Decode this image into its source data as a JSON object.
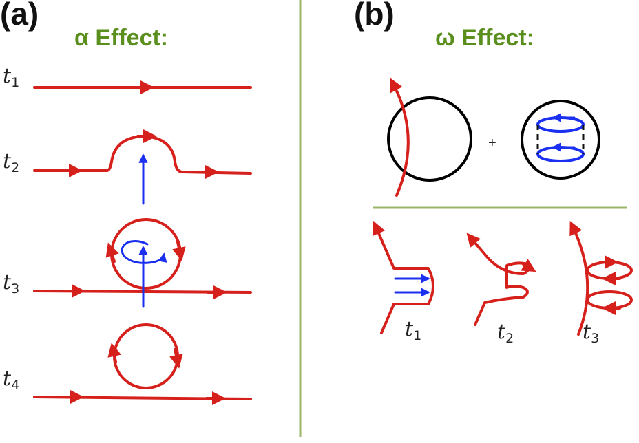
{
  "panel_a": {
    "label": "(a)",
    "title": "α Effect:",
    "time_labels": [
      {
        "base": "t",
        "sub": "1"
      },
      {
        "base": "t",
        "sub": "2"
      },
      {
        "base": "t",
        "sub": "3"
      },
      {
        "base": "t",
        "sub": "4"
      }
    ]
  },
  "panel_b": {
    "label": "(b)",
    "title": "ω Effect:",
    "plus_sign": "+",
    "time_labels": [
      {
        "base": "t",
        "sub": "1"
      },
      {
        "base": "t",
        "sub": "2"
      },
      {
        "base": "t",
        "sub": "3"
      }
    ]
  },
  "colors": {
    "field_line": "#d6201c",
    "flow": "#1a2ff0",
    "title": "#5a8f1e",
    "divider": "#9bb56a"
  }
}
